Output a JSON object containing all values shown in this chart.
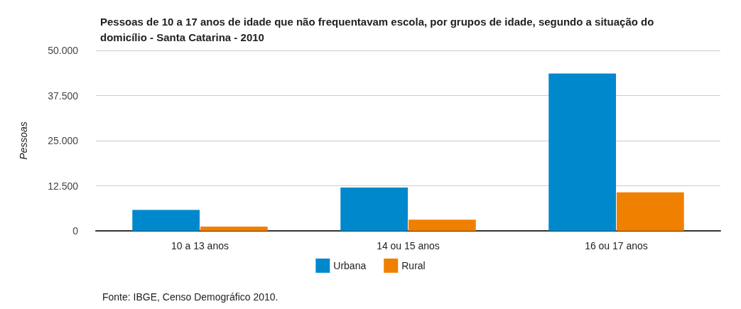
{
  "chart_data": {
    "type": "bar",
    "title": "Pessoas de 10 a 17 anos de idade que não frequentavam escola, por grupos de idade, segundo a situação do domicílio - Santa Catarina - 2010",
    "ylabel": "Pessoas",
    "categories": [
      "10 a 13 anos",
      "14 ou 15 anos",
      "16 ou 17 anos"
    ],
    "series": [
      {
        "name": "Urbana",
        "color": "#0088cc",
        "values": [
          5800,
          12000,
          43600
        ]
      },
      {
        "name": "Rural",
        "color": "#f08000",
        "values": [
          1200,
          3100,
          10700
        ]
      }
    ],
    "ylim": [
      0,
      50000
    ],
    "yticks": [
      {
        "value": 0,
        "label": "0"
      },
      {
        "value": 12500,
        "label": "12.500"
      },
      {
        "value": 25000,
        "label": "25.000"
      },
      {
        "value": 37500,
        "label": "37.500"
      },
      {
        "value": 50000,
        "label": "50.000"
      }
    ],
    "grid": "y",
    "legend": "bottom",
    "annotations": [
      "Fonte: IBGE, Censo Demográfico 2010."
    ]
  }
}
